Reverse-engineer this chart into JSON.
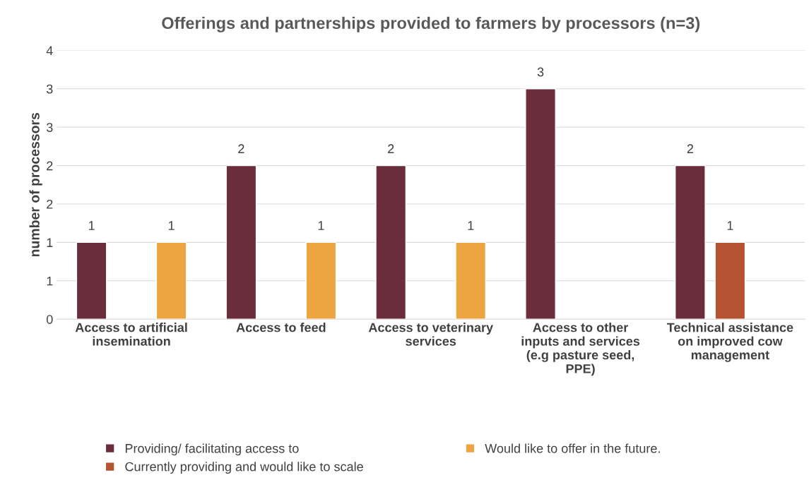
{
  "chart_data": {
    "type": "bar",
    "title": "Offerings and partnerships provided to farmers by processors (n=3)",
    "ylabel": "number of processors",
    "categories": [
      "Access to artificial\ninsemination",
      "Access to feed",
      "Access to veterinary\nservices",
      "Access to other\ninputs and services\n(e.g pasture seed,\nPPE)",
      "Technical assistance\non improved cow\nmanagement"
    ],
    "series": [
      {
        "name": "Providing/ facilitating access to",
        "color": "#6b2d3c",
        "values": [
          1,
          2,
          2,
          3,
          2
        ]
      },
      {
        "name": "Currently providing and would like to scale",
        "color": "#b55232",
        "values": [
          null,
          null,
          null,
          null,
          1
        ]
      },
      {
        "name": "Would like to offer in the future.",
        "color": "#eda542",
        "values": [
          1,
          1,
          1,
          null,
          null
        ]
      }
    ],
    "ylim": [
      0,
      3.5
    ],
    "yticks": [
      0,
      {
        "value": 0.5,
        "label": "1"
      },
      1,
      {
        "value": 1.5,
        "label": "2"
      },
      2,
      {
        "value": 2.5,
        "label": "3"
      },
      3,
      {
        "value": 3.5,
        "label": "4"
      }
    ],
    "grid": "y",
    "legend": "bottom",
    "data_labels": true
  }
}
